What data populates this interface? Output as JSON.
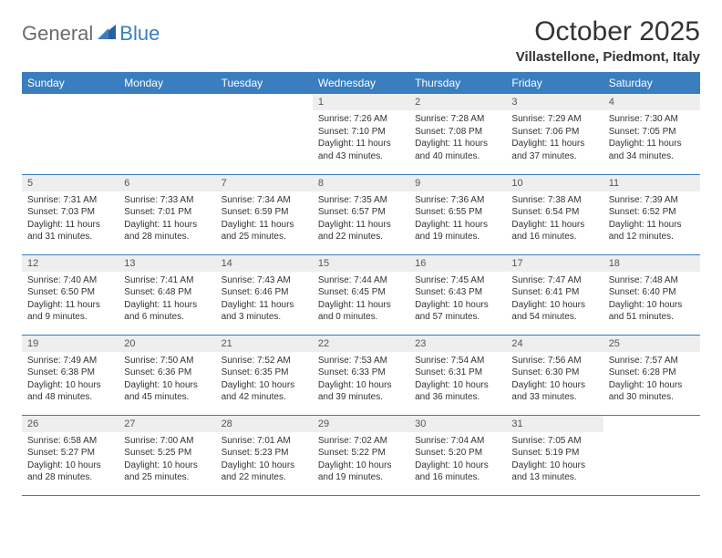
{
  "logo": {
    "general": "General",
    "blue": "Blue"
  },
  "title": "October 2025",
  "location": "Villastellone, Piedmont, Italy",
  "colors": {
    "header_bg": "#3a7ebf",
    "header_text": "#ffffff",
    "daynum_bg": "#eeeeee",
    "border": "#3a7ebf"
  },
  "day_names": [
    "Sunday",
    "Monday",
    "Tuesday",
    "Wednesday",
    "Thursday",
    "Friday",
    "Saturday"
  ],
  "weeks": [
    [
      {
        "num": "",
        "sunrise": "",
        "sunset": "",
        "daylight1": "",
        "daylight2": ""
      },
      {
        "num": "",
        "sunrise": "",
        "sunset": "",
        "daylight1": "",
        "daylight2": ""
      },
      {
        "num": "",
        "sunrise": "",
        "sunset": "",
        "daylight1": "",
        "daylight2": ""
      },
      {
        "num": "1",
        "sunrise": "Sunrise: 7:26 AM",
        "sunset": "Sunset: 7:10 PM",
        "daylight1": "Daylight: 11 hours",
        "daylight2": "and 43 minutes."
      },
      {
        "num": "2",
        "sunrise": "Sunrise: 7:28 AM",
        "sunset": "Sunset: 7:08 PM",
        "daylight1": "Daylight: 11 hours",
        "daylight2": "and 40 minutes."
      },
      {
        "num": "3",
        "sunrise": "Sunrise: 7:29 AM",
        "sunset": "Sunset: 7:06 PM",
        "daylight1": "Daylight: 11 hours",
        "daylight2": "and 37 minutes."
      },
      {
        "num": "4",
        "sunrise": "Sunrise: 7:30 AM",
        "sunset": "Sunset: 7:05 PM",
        "daylight1": "Daylight: 11 hours",
        "daylight2": "and 34 minutes."
      }
    ],
    [
      {
        "num": "5",
        "sunrise": "Sunrise: 7:31 AM",
        "sunset": "Sunset: 7:03 PM",
        "daylight1": "Daylight: 11 hours",
        "daylight2": "and 31 minutes."
      },
      {
        "num": "6",
        "sunrise": "Sunrise: 7:33 AM",
        "sunset": "Sunset: 7:01 PM",
        "daylight1": "Daylight: 11 hours",
        "daylight2": "and 28 minutes."
      },
      {
        "num": "7",
        "sunrise": "Sunrise: 7:34 AM",
        "sunset": "Sunset: 6:59 PM",
        "daylight1": "Daylight: 11 hours",
        "daylight2": "and 25 minutes."
      },
      {
        "num": "8",
        "sunrise": "Sunrise: 7:35 AM",
        "sunset": "Sunset: 6:57 PM",
        "daylight1": "Daylight: 11 hours",
        "daylight2": "and 22 minutes."
      },
      {
        "num": "9",
        "sunrise": "Sunrise: 7:36 AM",
        "sunset": "Sunset: 6:55 PM",
        "daylight1": "Daylight: 11 hours",
        "daylight2": "and 19 minutes."
      },
      {
        "num": "10",
        "sunrise": "Sunrise: 7:38 AM",
        "sunset": "Sunset: 6:54 PM",
        "daylight1": "Daylight: 11 hours",
        "daylight2": "and 16 minutes."
      },
      {
        "num": "11",
        "sunrise": "Sunrise: 7:39 AM",
        "sunset": "Sunset: 6:52 PM",
        "daylight1": "Daylight: 11 hours",
        "daylight2": "and 12 minutes."
      }
    ],
    [
      {
        "num": "12",
        "sunrise": "Sunrise: 7:40 AM",
        "sunset": "Sunset: 6:50 PM",
        "daylight1": "Daylight: 11 hours",
        "daylight2": "and 9 minutes."
      },
      {
        "num": "13",
        "sunrise": "Sunrise: 7:41 AM",
        "sunset": "Sunset: 6:48 PM",
        "daylight1": "Daylight: 11 hours",
        "daylight2": "and 6 minutes."
      },
      {
        "num": "14",
        "sunrise": "Sunrise: 7:43 AM",
        "sunset": "Sunset: 6:46 PM",
        "daylight1": "Daylight: 11 hours",
        "daylight2": "and 3 minutes."
      },
      {
        "num": "15",
        "sunrise": "Sunrise: 7:44 AM",
        "sunset": "Sunset: 6:45 PM",
        "daylight1": "Daylight: 11 hours",
        "daylight2": "and 0 minutes."
      },
      {
        "num": "16",
        "sunrise": "Sunrise: 7:45 AM",
        "sunset": "Sunset: 6:43 PM",
        "daylight1": "Daylight: 10 hours",
        "daylight2": "and 57 minutes."
      },
      {
        "num": "17",
        "sunrise": "Sunrise: 7:47 AM",
        "sunset": "Sunset: 6:41 PM",
        "daylight1": "Daylight: 10 hours",
        "daylight2": "and 54 minutes."
      },
      {
        "num": "18",
        "sunrise": "Sunrise: 7:48 AM",
        "sunset": "Sunset: 6:40 PM",
        "daylight1": "Daylight: 10 hours",
        "daylight2": "and 51 minutes."
      }
    ],
    [
      {
        "num": "19",
        "sunrise": "Sunrise: 7:49 AM",
        "sunset": "Sunset: 6:38 PM",
        "daylight1": "Daylight: 10 hours",
        "daylight2": "and 48 minutes."
      },
      {
        "num": "20",
        "sunrise": "Sunrise: 7:50 AM",
        "sunset": "Sunset: 6:36 PM",
        "daylight1": "Daylight: 10 hours",
        "daylight2": "and 45 minutes."
      },
      {
        "num": "21",
        "sunrise": "Sunrise: 7:52 AM",
        "sunset": "Sunset: 6:35 PM",
        "daylight1": "Daylight: 10 hours",
        "daylight2": "and 42 minutes."
      },
      {
        "num": "22",
        "sunrise": "Sunrise: 7:53 AM",
        "sunset": "Sunset: 6:33 PM",
        "daylight1": "Daylight: 10 hours",
        "daylight2": "and 39 minutes."
      },
      {
        "num": "23",
        "sunrise": "Sunrise: 7:54 AM",
        "sunset": "Sunset: 6:31 PM",
        "daylight1": "Daylight: 10 hours",
        "daylight2": "and 36 minutes."
      },
      {
        "num": "24",
        "sunrise": "Sunrise: 7:56 AM",
        "sunset": "Sunset: 6:30 PM",
        "daylight1": "Daylight: 10 hours",
        "daylight2": "and 33 minutes."
      },
      {
        "num": "25",
        "sunrise": "Sunrise: 7:57 AM",
        "sunset": "Sunset: 6:28 PM",
        "daylight1": "Daylight: 10 hours",
        "daylight2": "and 30 minutes."
      }
    ],
    [
      {
        "num": "26",
        "sunrise": "Sunrise: 6:58 AM",
        "sunset": "Sunset: 5:27 PM",
        "daylight1": "Daylight: 10 hours",
        "daylight2": "and 28 minutes."
      },
      {
        "num": "27",
        "sunrise": "Sunrise: 7:00 AM",
        "sunset": "Sunset: 5:25 PM",
        "daylight1": "Daylight: 10 hours",
        "daylight2": "and 25 minutes."
      },
      {
        "num": "28",
        "sunrise": "Sunrise: 7:01 AM",
        "sunset": "Sunset: 5:23 PM",
        "daylight1": "Daylight: 10 hours",
        "daylight2": "and 22 minutes."
      },
      {
        "num": "29",
        "sunrise": "Sunrise: 7:02 AM",
        "sunset": "Sunset: 5:22 PM",
        "daylight1": "Daylight: 10 hours",
        "daylight2": "and 19 minutes."
      },
      {
        "num": "30",
        "sunrise": "Sunrise: 7:04 AM",
        "sunset": "Sunset: 5:20 PM",
        "daylight1": "Daylight: 10 hours",
        "daylight2": "and 16 minutes."
      },
      {
        "num": "31",
        "sunrise": "Sunrise: 7:05 AM",
        "sunset": "Sunset: 5:19 PM",
        "daylight1": "Daylight: 10 hours",
        "daylight2": "and 13 minutes."
      },
      {
        "num": "",
        "sunrise": "",
        "sunset": "",
        "daylight1": "",
        "daylight2": ""
      }
    ]
  ]
}
